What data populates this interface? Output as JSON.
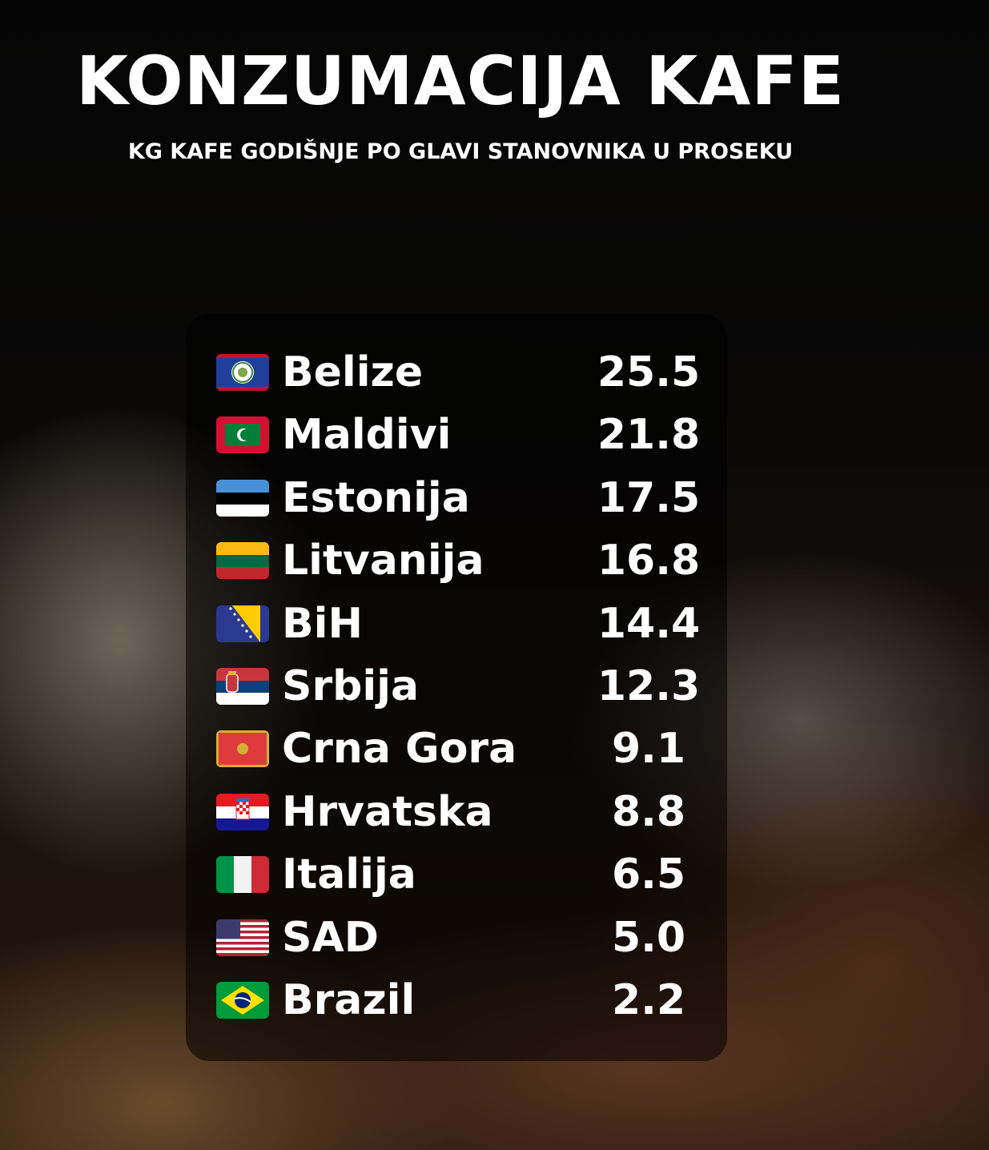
{
  "title": "KONZUMACIJA KAFE",
  "subtitle": "KG KAFE GODIŠNJE PO GLAVI STANOVNIKA U PROSEKU",
  "chart_data": {
    "type": "table",
    "title": "KONZUMACIJA KAFE",
    "subtitle": "KG KAFE GODIŠNJE PO GLAVI STANOVNIKA U PROSEKU",
    "rows": [
      {
        "country": "Belize",
        "flag": "belize-flag",
        "value": "25.5"
      },
      {
        "country": "Maldivi",
        "flag": "maldives-flag",
        "value": "21.8"
      },
      {
        "country": "Estonija",
        "flag": "estonia-flag",
        "value": "17.5"
      },
      {
        "country": "Litvanija",
        "flag": "lithuania-flag",
        "value": "16.8"
      },
      {
        "country": "BiH",
        "flag": "bosnia-flag",
        "value": "14.4"
      },
      {
        "country": "Srbija",
        "flag": "serbia-flag",
        "value": "12.3"
      },
      {
        "country": "Crna Gora",
        "flag": "montenegro-flag",
        "value": "9.1"
      },
      {
        "country": "Hrvatska",
        "flag": "croatia-flag",
        "value": "8.8"
      },
      {
        "country": "Italija",
        "flag": "italy-flag",
        "value": "6.5"
      },
      {
        "country": "SAD",
        "flag": "usa-flag",
        "value": "5.0"
      },
      {
        "country": "Brazil",
        "flag": "brazil-flag",
        "value": "2.2"
      }
    ]
  }
}
